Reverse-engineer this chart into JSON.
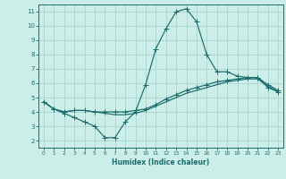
{
  "title": "",
  "xlabel": "Humidex (Indice chaleur)",
  "background_color": "#cceee8",
  "grid_color": "#aad4ce",
  "line_color": "#1a6b6b",
  "xlim": [
    -0.5,
    23.5
  ],
  "ylim": [
    1.5,
    11.5
  ],
  "xticks": [
    0,
    1,
    2,
    3,
    4,
    5,
    6,
    7,
    8,
    9,
    10,
    11,
    12,
    13,
    14,
    15,
    16,
    17,
    18,
    19,
    20,
    21,
    22,
    23
  ],
  "yticks": [
    2,
    3,
    4,
    5,
    6,
    7,
    8,
    9,
    10,
    11
  ],
  "line1_x": [
    0,
    1,
    2,
    3,
    4,
    5,
    6,
    7,
    8,
    9,
    10,
    11,
    12,
    13,
    14,
    15,
    16,
    17,
    18,
    19,
    20,
    21,
    22,
    23
  ],
  "line1_y": [
    4.7,
    4.2,
    3.9,
    3.6,
    3.3,
    3.0,
    2.2,
    2.2,
    3.3,
    4.0,
    5.9,
    8.4,
    9.8,
    11.0,
    11.2,
    10.3,
    8.0,
    6.8,
    6.8,
    6.5,
    6.4,
    6.4,
    5.7,
    5.4
  ],
  "line2_x": [
    0,
    1,
    2,
    3,
    4,
    5,
    6,
    7,
    8,
    9,
    10,
    11,
    12,
    13,
    14,
    15,
    16,
    17,
    18,
    19,
    20,
    21,
    22,
    23
  ],
  "line2_y": [
    4.7,
    4.2,
    4.0,
    4.1,
    4.1,
    4.0,
    4.0,
    4.0,
    4.0,
    4.1,
    4.2,
    4.5,
    4.9,
    5.2,
    5.5,
    5.7,
    5.9,
    6.1,
    6.2,
    6.3,
    6.4,
    6.4,
    5.9,
    5.5
  ],
  "line3_x": [
    0,
    1,
    2,
    3,
    4,
    5,
    6,
    7,
    8,
    9,
    10,
    11,
    12,
    13,
    14,
    15,
    16,
    17,
    18,
    19,
    20,
    21,
    22,
    23
  ],
  "line3_y": [
    4.7,
    4.2,
    4.0,
    4.1,
    4.1,
    4.0,
    3.9,
    3.8,
    3.8,
    3.9,
    4.1,
    4.4,
    4.7,
    5.0,
    5.3,
    5.5,
    5.7,
    5.9,
    6.1,
    6.2,
    6.3,
    6.3,
    5.8,
    5.4
  ]
}
